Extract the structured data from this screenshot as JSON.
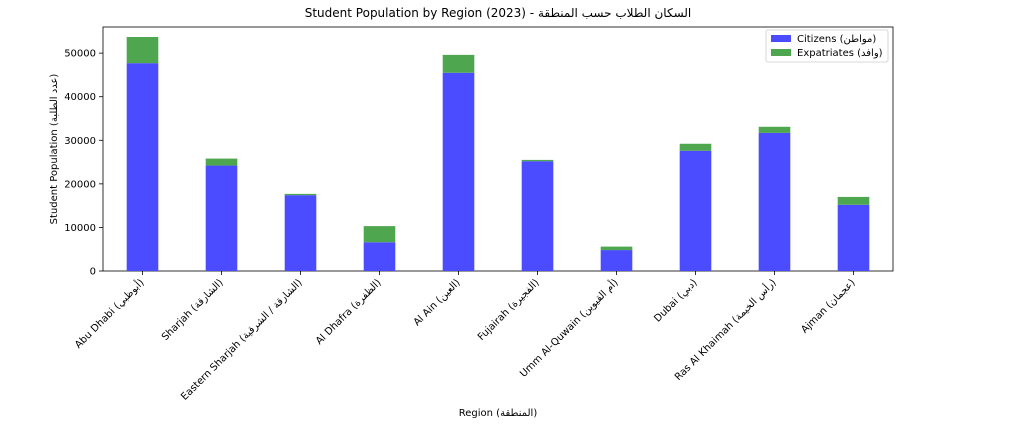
{
  "chart_data": {
    "type": "bar",
    "stacked": true,
    "title": "Student Population by Region (2023) - السكان الطلاب حسب المنطقة",
    "xlabel": "Region (المنطقة)",
    "ylabel": "Student Population (عدد الطلبة)",
    "ylim": [
      0,
      56000
    ],
    "yticks": [
      0,
      10000,
      20000,
      30000,
      40000,
      50000
    ],
    "categories": [
      "Abu Dhabi (أبوظبي)",
      "Sharjah (الشارقة)",
      "Eastern Sharjah (الشارقة / الشرقية)",
      "Al Dhafra (الظفرة)",
      "Al Ain (العين)",
      "Fujairah (الفجيرة)",
      "Umm Al-Quwain (أم القيوين)",
      "Dubai (دبي)",
      "Ras Al Khaimah (رأس الخيمة)",
      "Ajman (عجمان)"
    ],
    "series": [
      {
        "name": "Citizens (مواطن)",
        "color": "#4b4bff",
        "values": [
          47700,
          24200,
          17400,
          6600,
          45500,
          25200,
          4800,
          27600,
          31700,
          15200
        ]
      },
      {
        "name": "Expatriates (وافد)",
        "color": "#4ea64e",
        "values": [
          6000,
          1600,
          300,
          3700,
          4100,
          300,
          800,
          1600,
          1400,
          1800
        ]
      }
    ],
    "legend_position": "top-right",
    "grid": false
  }
}
